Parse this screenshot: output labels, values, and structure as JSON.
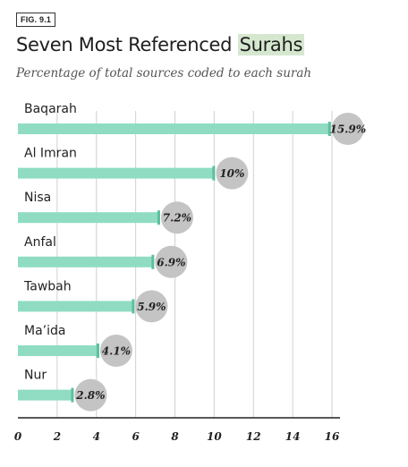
{
  "figure_label": "FIG. 9.1",
  "title_main": "Seven Most Referenced ",
  "title_highlight": "Surahs",
  "subtitle": "Percentage of total sources coded to each surah",
  "colors": {
    "bar": "#8fdcc3",
    "bar_end": "#5bbf9f",
    "bubble": "#c4c4c4",
    "grid": "#d0d0d0",
    "axis": "#222222",
    "highlight": "#d5e8cf"
  },
  "chart_data": {
    "type": "bar",
    "orientation": "horizontal",
    "title": "Seven Most Referenced Surahs",
    "subtitle": "Percentage of total sources coded to each surah",
    "categories": [
      "Baqarah",
      "Al Imran",
      "Nisa",
      "Anfal",
      "Tawbah",
      "Ma’ida",
      "Nur"
    ],
    "values": [
      15.9,
      10,
      7.2,
      6.9,
      5.9,
      4.1,
      2.8
    ],
    "data_labels": [
      "15.9%",
      "10%",
      "7.2%",
      "6.9%",
      "5.9%",
      "4.1%",
      "2.8%"
    ],
    "xlim": [
      0,
      16
    ],
    "xticks": [
      "0",
      "2",
      "4",
      "6",
      "8",
      "10",
      "12",
      "14",
      "16"
    ],
    "grid": true,
    "xlabel": "",
    "ylabel": ""
  }
}
